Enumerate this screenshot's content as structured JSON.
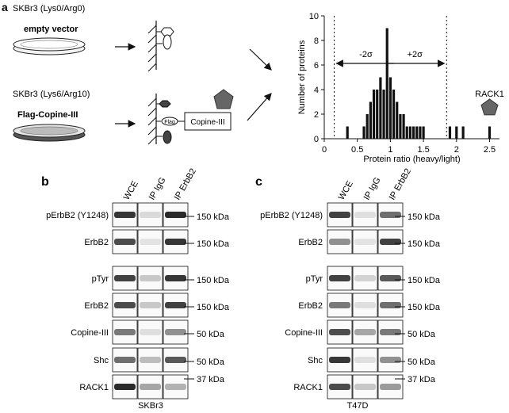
{
  "panel_a": {
    "letter": "a",
    "top_label": "SKBr3 (Lys0/Arg0)",
    "top_dish_label": "empty vector",
    "bottom_label": "SKBr3 (Lys6/Arg10)",
    "bottom_dish_label": "Flag-Copine-III",
    "flag_tag": "Flag",
    "copine_box": "Copine-III",
    "rack1_label": "RACK1",
    "minus_sigma": "-2σ",
    "plus_sigma": "+2σ"
  },
  "chart_data": {
    "type": "bar",
    "xlabel": "Protein ratio (heavy/light)",
    "ylabel": "Number of proteins",
    "xlim": [
      0,
      2.65
    ],
    "ylim": [
      0,
      10
    ],
    "xticks": [
      "0",
      "0.5",
      "1",
      "1.5",
      "2",
      "2.5"
    ],
    "yticks": [
      "0",
      "2",
      "4",
      "6",
      "8",
      "10"
    ],
    "x": [
      0.35,
      0.6,
      0.65,
      0.7,
      0.75,
      0.8,
      0.85,
      0.9,
      0.95,
      1.0,
      1.05,
      1.1,
      1.15,
      1.2,
      1.25,
      1.3,
      1.35,
      1.4,
      1.45,
      1.5,
      1.9,
      2.0,
      2.1,
      2.5
    ],
    "values": [
      1,
      1,
      2,
      3,
      4,
      4,
      5,
      4,
      9,
      5,
      4,
      3,
      2,
      2,
      1,
      1,
      1,
      1,
      1,
      1,
      1,
      1,
      1,
      1
    ],
    "sigma_lines": [
      0.15,
      1.85
    ],
    "grid": false
  },
  "panel_b": {
    "letter": "b",
    "columns": [
      "WCE",
      "IP IgG",
      "IP ErbB2"
    ],
    "rows": [
      {
        "label": "pErbB2 (Y1248)",
        "marker": "150 kDa",
        "bands": [
          0.85,
          0.12,
          0.9
        ]
      },
      {
        "label": "ErbB2",
        "marker": "150 kDa",
        "bands": [
          0.75,
          0.08,
          0.85
        ]
      },
      {
        "label": "pTyr",
        "marker": "150 kDa",
        "bands": [
          0.8,
          0.2,
          0.85
        ]
      },
      {
        "label": "ErbB2",
        "marker": "150 kDa",
        "bands": [
          0.75,
          0.2,
          0.8
        ]
      },
      {
        "label": "Copine-III",
        "marker": "50 kDa",
        "bands": [
          0.55,
          0.1,
          0.45
        ]
      },
      {
        "label": "Shc",
        "marker": "50 kDa",
        "bands": [
          0.6,
          0.25,
          0.7
        ]
      },
      {
        "label": "RACK1",
        "marker": "37 kDa",
        "bands": [
          0.9,
          0.35,
          0.3
        ]
      }
    ],
    "cell_line": "SKBr3"
  },
  "panel_c": {
    "letter": "c",
    "columns": [
      "WCE",
      "IP IgG",
      "IP ErbB2"
    ],
    "rows": [
      {
        "label": "pErbB2 (Y1248)",
        "marker": "150 kDa",
        "bands": [
          0.8,
          0.1,
          0.6
        ]
      },
      {
        "label": "ErbB2",
        "marker": "150 kDa",
        "bands": [
          0.45,
          0.08,
          0.8
        ]
      },
      {
        "label": "pTyr",
        "marker": "150 kDa",
        "bands": [
          0.8,
          0.15,
          0.7
        ]
      },
      {
        "label": "ErbB2",
        "marker": "150 kDa",
        "bands": [
          0.55,
          0.1,
          0.6
        ]
      },
      {
        "label": "Copine-III",
        "marker": "50 kDa",
        "bands": [
          0.75,
          0.35,
          0.55
        ]
      },
      {
        "label": "Shc",
        "marker": "50 kDa",
        "bands": [
          0.85,
          0.1,
          0.45
        ]
      },
      {
        "label": "RACK1",
        "marker": "37 kDa",
        "bands": [
          0.75,
          0.2,
          0.4
        ]
      }
    ],
    "cell_line": "T47D"
  },
  "colors": {
    "ink": "#111111",
    "dish_dark": "#555555",
    "dish_light": "#e6e6e6",
    "rack1": "#666666"
  }
}
